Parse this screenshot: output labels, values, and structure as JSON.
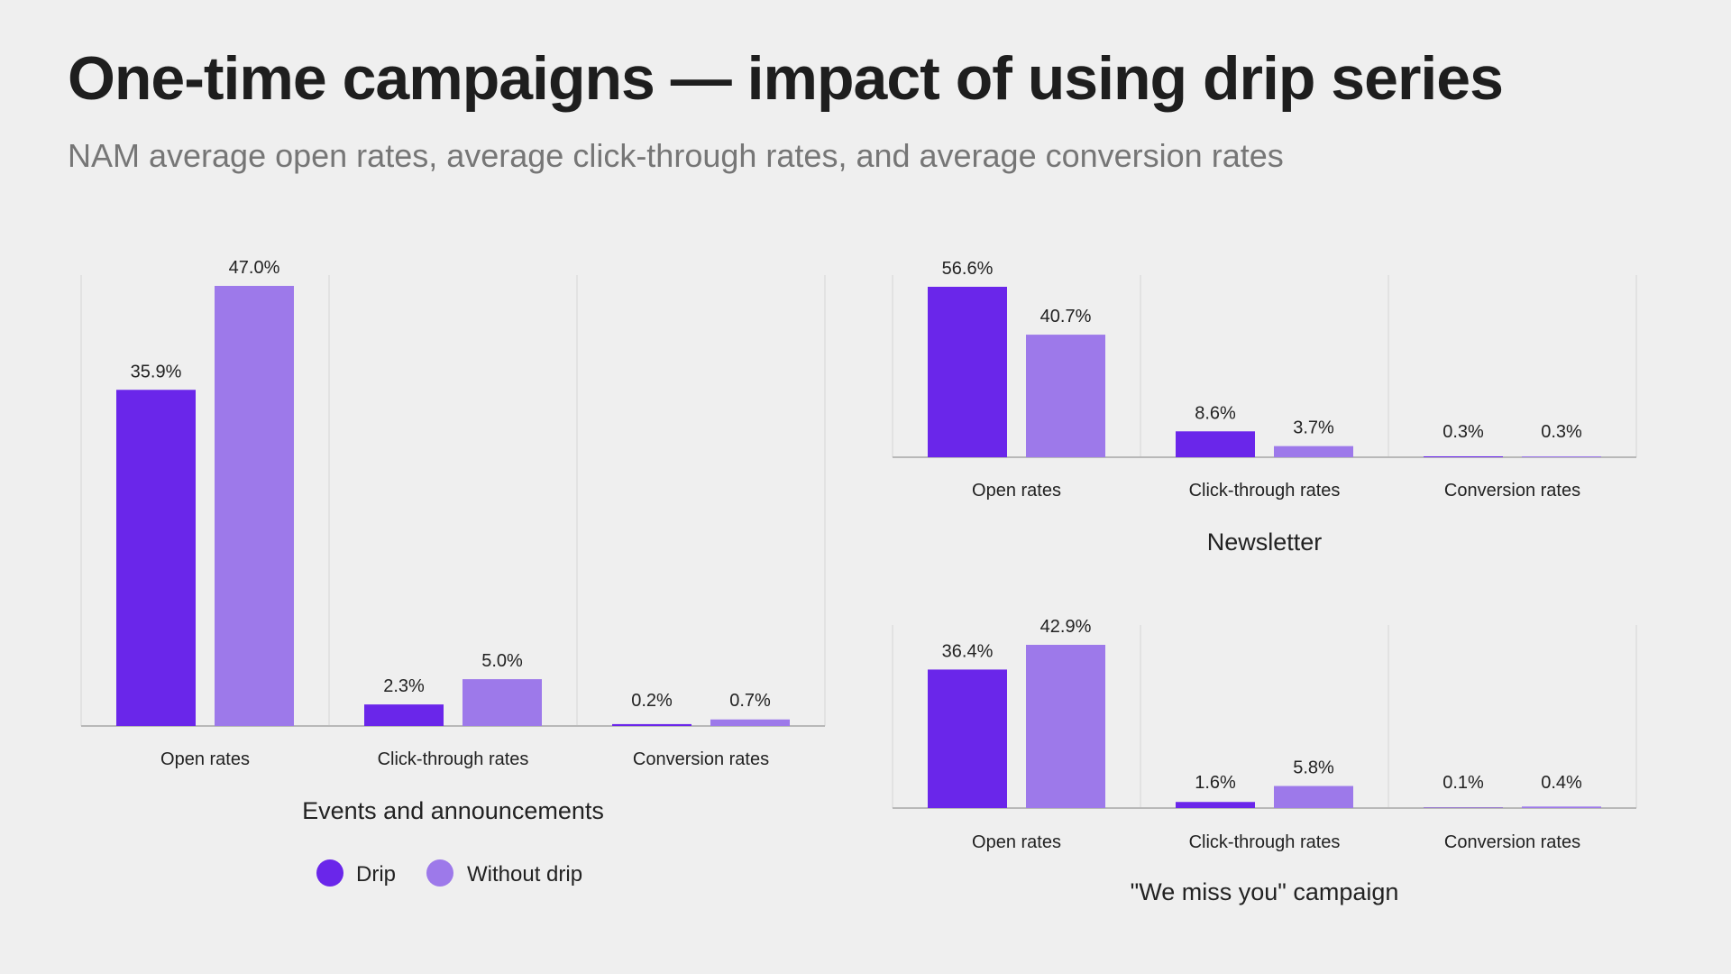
{
  "title": "One-time campaigns — impact of using drip series",
  "subtitle": "NAM average open rates, average click-through rates, and average conversion rates",
  "colors": {
    "drip": "#6a26ea",
    "without_drip": "#9d79ea",
    "grid": "#d6d6d6",
    "axis": "#b8b8b8"
  },
  "legend": [
    {
      "label": "Drip",
      "color": "#6a26ea"
    },
    {
      "label": "Without drip",
      "color": "#9d79ea"
    }
  ],
  "chart_data": [
    {
      "type": "bar",
      "title": "Events and announcements",
      "categories": [
        "Open rates",
        "Click-through rates",
        "Conversion rates"
      ],
      "series": [
        {
          "name": "Drip",
          "values": [
            35.9,
            2.3,
            0.2
          ],
          "labels": [
            "35.9%",
            "2.3%",
            "0.2%"
          ]
        },
        {
          "name": "Without drip",
          "values": [
            47.0,
            5.0,
            0.7
          ],
          "labels": [
            "47.0%",
            "5.0%",
            "0.7%"
          ]
        }
      ],
      "ylim": [
        0,
        47.0
      ]
    },
    {
      "type": "bar",
      "title": "Newsletter",
      "categories": [
        "Open rates",
        "Click-through rates",
        "Conversion rates"
      ],
      "series": [
        {
          "name": "Drip",
          "values": [
            56.6,
            8.6,
            0.3
          ],
          "labels": [
            "56.6%",
            "8.6%",
            "0.3%"
          ]
        },
        {
          "name": "Without drip",
          "values": [
            40.7,
            3.7,
            0.3
          ],
          "labels": [
            "40.7%",
            "3.7%",
            "0.3%"
          ]
        }
      ],
      "ylim": [
        0,
        56.6
      ]
    },
    {
      "type": "bar",
      "title": "\"We miss you\" campaign",
      "categories": [
        "Open rates",
        "Click-through rates",
        "Conversion rates"
      ],
      "series": [
        {
          "name": "Drip",
          "values": [
            36.4,
            1.6,
            0.1
          ],
          "labels": [
            "36.4%",
            "1.6%",
            "0.1%"
          ]
        },
        {
          "name": "Without drip",
          "values": [
            42.9,
            5.8,
            0.4
          ],
          "labels": [
            "42.9%",
            "5.8%",
            "0.4%"
          ]
        }
      ],
      "ylim": [
        0,
        42.9
      ]
    }
  ]
}
